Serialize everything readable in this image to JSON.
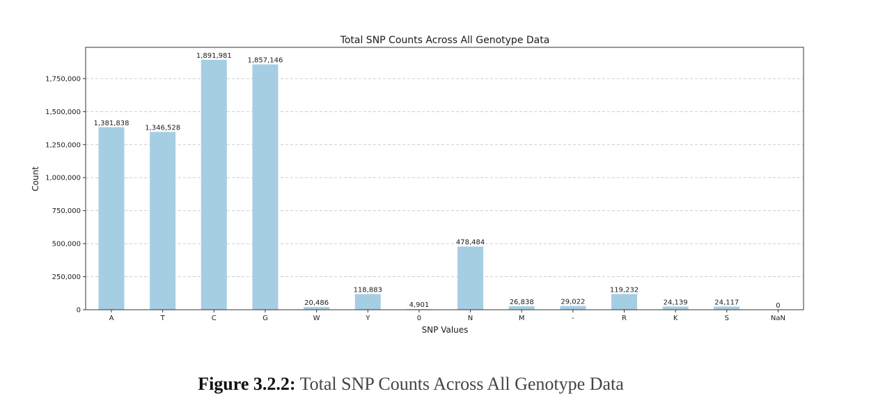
{
  "chart_data": {
    "type": "bar",
    "title": "Total SNP Counts Across All Genotype Data",
    "xlabel": "SNP Values",
    "ylabel": "Count",
    "categories": [
      "A",
      "T",
      "C",
      "G",
      "W",
      "Y",
      "0",
      "N",
      "M",
      "-",
      "R",
      "K",
      "S",
      "NaN"
    ],
    "values": [
      1381838,
      1346528,
      1891981,
      1857146,
      20486,
      118883,
      4901,
      478484,
      26838,
      29022,
      119232,
      24139,
      24117,
      0
    ],
    "data_labels": [
      "1,381,838",
      "1,346,528",
      "1,891,981",
      "1,857,146",
      "20,486",
      "118,883",
      "4,901",
      "478,484",
      "26,838",
      "29,022",
      "119,232",
      "24,139",
      "24,117",
      "0"
    ],
    "yticks": [
      0,
      250000,
      500000,
      750000,
      1000000,
      1250000,
      1500000,
      1750000
    ],
    "ytick_labels": [
      "0",
      "250,000",
      "500,000",
      "750,000",
      "1,000,000",
      "1,250,000",
      "1,500,000",
      "1,750,000"
    ],
    "ylim": [
      0,
      1986580
    ],
    "grid": "horizontal dashed",
    "bar_color": "#a6cee3"
  },
  "caption": {
    "label": "Figure 3.2.2:",
    "text": "Total SNP Counts Across All Genotype Data"
  }
}
